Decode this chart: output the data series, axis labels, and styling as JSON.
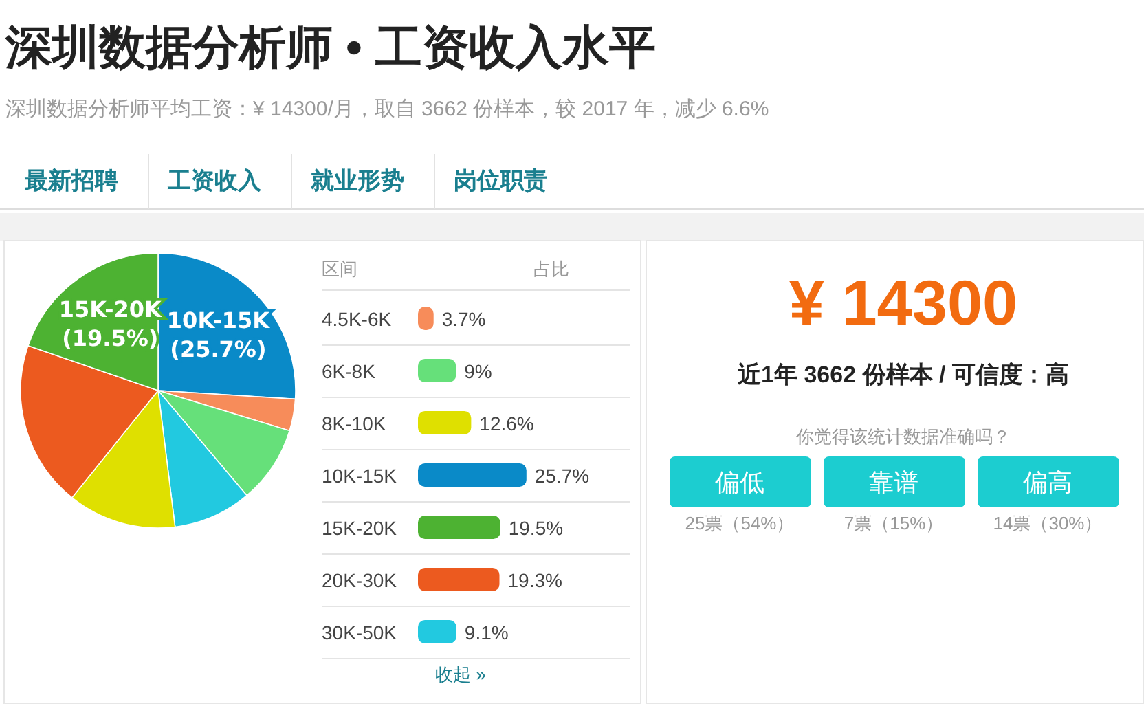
{
  "chart_data": [
    {
      "type": "other",
      "title": "深圳数据分析师 • 工资收入水平",
      "subtitle": "深圳数据分析师平均工资：¥ 14300/月，取自 3662 份样本，较 2017 年，减少 6.6%",
      "annotations": [
        "最新招聘",
        "工资收入",
        "就业形势",
        "岗位职责"
      ]
    },
    {
      "type": "pie",
      "categories": [
        "10K-15K",
        null,
        null,
        null,
        null,
        null,
        "15K-20K"
      ],
      "values": [
        25.7,
        3.7,
        9,
        9.1,
        12.6,
        19.3,
        19.5
      ],
      "colors": [
        "#0a8ac8",
        "#f78c5a",
        "#66e07a",
        "#22c9e0",
        "#dfe000",
        "#ec5a1f",
        "#4db232"
      ],
      "value_labels": [
        "(25.7%)",
        null,
        null,
        null,
        null,
        null,
        "(19.5%)"
      ]
    },
    {
      "type": "bar",
      "orientation": "horizontal",
      "ylabel": "区间",
      "xlabel": "占比",
      "categories": [
        "4.5K-6K",
        "6K-8K",
        "8K-10K",
        "10K-15K",
        "15K-20K",
        "20K-30K",
        "30K-50K"
      ],
      "values": [
        3.7,
        9,
        12.6,
        25.7,
        19.5,
        19.3,
        9.1
      ],
      "colors": [
        "#f78c5a",
        "#66e07a",
        "#dfe000",
        "#0a8ac8",
        "#4db232",
        "#ec5a1f",
        "#22c9e0"
      ],
      "value_labels": [
        "3.7%",
        "9%",
        "12.6%",
        "25.7%",
        "19.5%",
        "19.3%",
        "9.1%"
      ],
      "annotations": [
        "收起 »"
      ]
    },
    {
      "type": "other",
      "title": "¥ 14300",
      "subtitle": "近1年 3662 份样本 / 可信度：高",
      "annotations": [
        "你觉得该统计数据准确吗？",
        "偏低",
        "25票（54%）",
        "靠谱",
        "7票（15%）",
        "偏高",
        "14票（30%）"
      ]
    }
  ]
}
